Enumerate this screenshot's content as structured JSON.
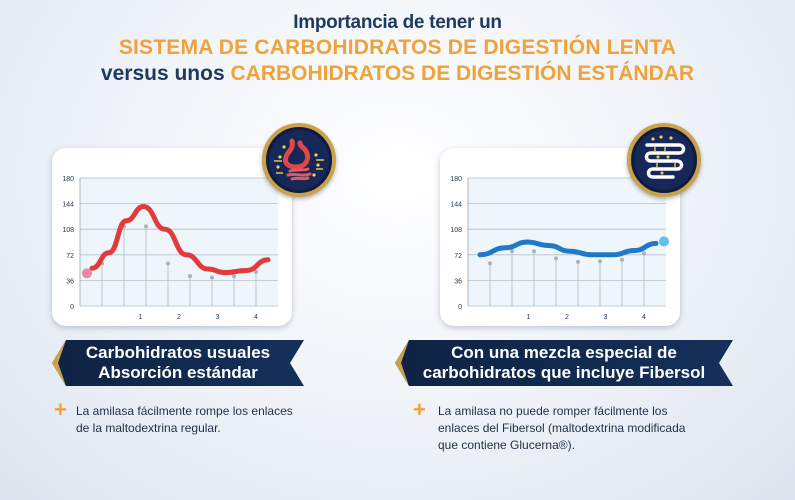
{
  "title": {
    "line1": "Importancia de tener un",
    "line2": "SISTEMA DE CARBOHIDRATOS DE DIGESTIÓN LENTA",
    "line3_prefix": "versus unos ",
    "line3_highlight": "CARBOHIDRATOS DE DIGESTIÓN ESTÁNDAR"
  },
  "colors": {
    "navy": "#1f3a60",
    "orange": "#f0a23a",
    "curve_left": "#e23b3b",
    "curve_right": "#1f79c8",
    "gold": "#c9a24b"
  },
  "chart_data": [
    {
      "type": "line",
      "y_ticks": [
        "180",
        "144",
        "108",
        "72",
        "36",
        "0"
      ],
      "x_ticks": [
        "1",
        "2",
        "3",
        "4"
      ],
      "ylim": [
        0,
        180
      ],
      "grid": true,
      "series": [
        {
          "values_x": [
            -0.1,
            0.3,
            0.7,
            1.1,
            1.6,
            2.1,
            2.6,
            3.0,
            3.5,
            4.0
          ],
          "values_y": [
            53,
            75,
            120,
            140,
            108,
            72,
            52,
            47,
            50,
            65
          ]
        }
      ],
      "marker_values": [
        60,
        112,
        112,
        60,
        42,
        40,
        42,
        48
      ]
    },
    {
      "type": "line",
      "y_ticks": [
        "180",
        "144",
        "108",
        "72",
        "36",
        "0"
      ],
      "x_ticks": [
        "1",
        "2",
        "3",
        "4"
      ],
      "ylim": [
        0,
        180
      ],
      "grid": true,
      "series": [
        {
          "values_x": [
            -0.1,
            0.5,
            1.0,
            1.5,
            2.0,
            2.5,
            3.0,
            3.5,
            4.0
          ],
          "values_y": [
            72,
            82,
            90,
            85,
            77,
            72,
            72,
            78,
            88
          ]
        }
      ],
      "marker_values": [
        60,
        77,
        77,
        67,
        62,
        63,
        65,
        74
      ]
    }
  ],
  "left": {
    "banner_line1": "Carbohidratos usuales",
    "banner_line2": "Absorción estándar",
    "desc_line1": "La amilasa fácilmente rompe los enlaces",
    "desc_line2": "de la maltodextrina regular.",
    "icon": "stomach-digestion-icon"
  },
  "right": {
    "banner_line1": "Con una mezcla especial de",
    "banner_line2": "carbohidratos que incluye Fibersol",
    "desc_line1": "La amilasa no puede romper fácilmente los",
    "desc_line2": "enlaces del Fibersol (maltodextrina modificada",
    "desc_line3": "que contiene Glucerna®).",
    "icon": "intestine-digestion-icon"
  }
}
